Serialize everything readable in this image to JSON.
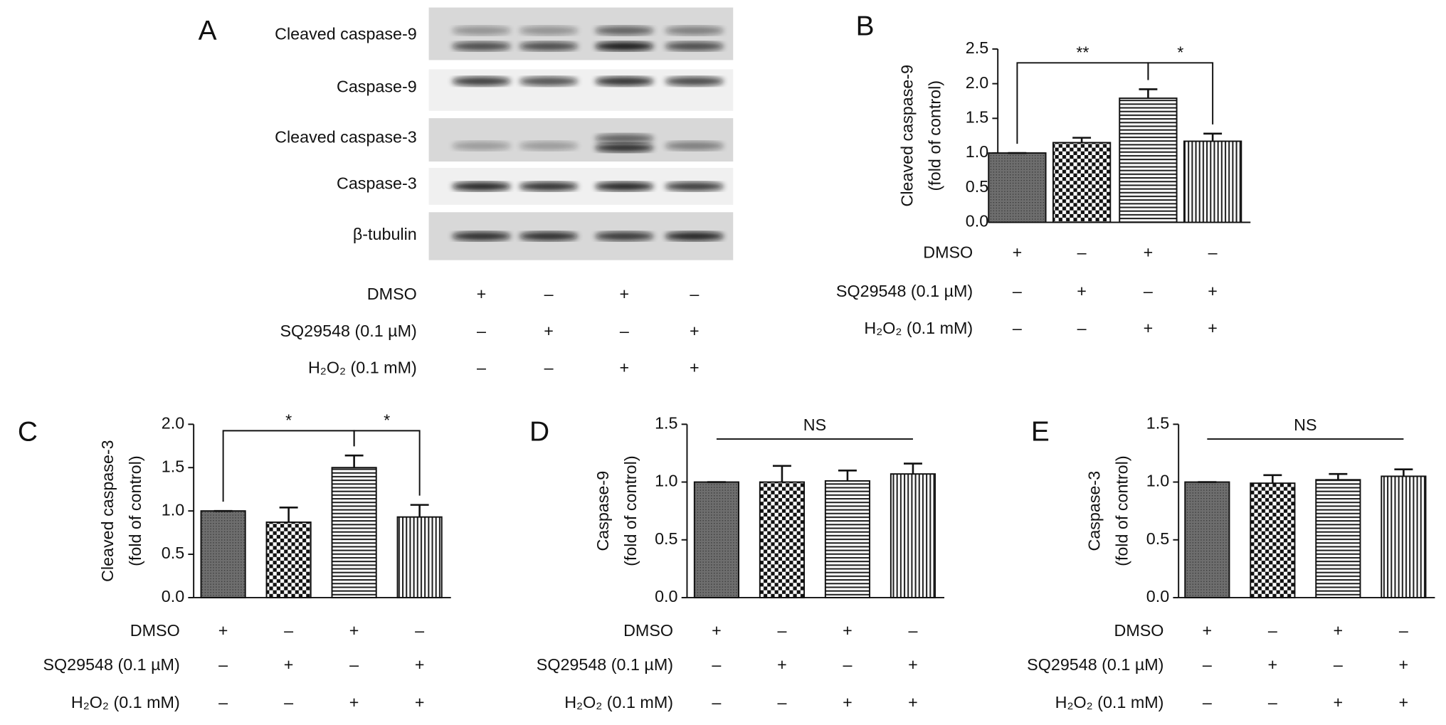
{
  "blot": {
    "panel_label": "A",
    "rows": [
      "Cleaved caspase-9",
      "Caspase-9",
      "Cleaved caspase-3",
      "Caspase-3",
      "β-tubulin"
    ],
    "treatments": [
      {
        "name": "DMSO",
        "signs": [
          "+",
          "–",
          "+",
          "–"
        ]
      },
      {
        "name": "SQ29548 (0.1 µM)",
        "signs": [
          "–",
          "+",
          "–",
          "+"
        ]
      },
      {
        "name": "H₂O₂ (0.1 mM)",
        "signs": [
          "–",
          "–",
          "+",
          "+"
        ]
      }
    ]
  },
  "chart_data": [
    {
      "type": "bar",
      "panel_label": "B",
      "ylabel": [
        "Cleaved caspase-9",
        "(fold of control)"
      ],
      "values": [
        1.0,
        1.15,
        1.79,
        1.17
      ],
      "errors": [
        0,
        0.07,
        0.13,
        0.11
      ],
      "ylim": [
        0,
        2.5
      ],
      "yticks": [
        {
          "value": 0,
          "label": "0.0"
        },
        0.5,
        {
          "value": 1,
          "label": "1.0"
        },
        1.5,
        {
          "value": 2,
          "label": "2.0"
        },
        2.5
      ],
      "annotations": [
        "**",
        "*"
      ],
      "treatments": [
        {
          "name": "DMSO",
          "signs": [
            "+",
            "–",
            "+",
            "–"
          ]
        },
        {
          "name": "SQ29548 (0.1 µM)",
          "signs": [
            "–",
            "+",
            "–",
            "+"
          ]
        },
        {
          "name": "H₂O₂ (0.1 mM)",
          "signs": [
            "–",
            "–",
            "+",
            "+"
          ]
        }
      ]
    },
    {
      "type": "bar",
      "panel_label": "C",
      "ylabel": [
        "Cleaved caspase-3",
        "(fold of control)"
      ],
      "values": [
        1.0,
        0.87,
        1.5,
        0.93
      ],
      "errors": [
        0,
        0.17,
        0.14,
        0.14
      ],
      "ylim": [
        0,
        2
      ],
      "yticks": [
        {
          "value": 0,
          "label": "0.0"
        },
        0.5,
        {
          "value": 1,
          "label": "1.0"
        },
        1.5,
        {
          "value": 2,
          "label": "2.0"
        }
      ],
      "annotations": [
        "*",
        "*"
      ],
      "treatments": [
        {
          "name": "DMSO",
          "signs": [
            "+",
            "–",
            "+",
            "–"
          ]
        },
        {
          "name": "SQ29548 (0.1 µM)",
          "signs": [
            "–",
            "+",
            "–",
            "+"
          ]
        },
        {
          "name": "H₂O₂ (0.1 mM)",
          "signs": [
            "–",
            "–",
            "+",
            "+"
          ]
        }
      ]
    },
    {
      "type": "bar",
      "panel_label": "D",
      "ylabel": [
        "Caspase-9",
        "(fold of control)"
      ],
      "values": [
        1.0,
        1.0,
        1.01,
        1.07
      ],
      "errors": [
        0,
        0.14,
        0.09,
        0.09
      ],
      "ylim": [
        0,
        1.5
      ],
      "yticks": [
        {
          "value": 0,
          "label": "0.0"
        },
        0.5,
        {
          "value": 1,
          "label": "1.0"
        },
        1.5
      ],
      "annotations": [
        "NS"
      ],
      "treatments": [
        {
          "name": "DMSO",
          "signs": [
            "+",
            "–",
            "+",
            "–"
          ]
        },
        {
          "name": "SQ29548 (0.1 µM)",
          "signs": [
            "–",
            "+",
            "–",
            "+"
          ]
        },
        {
          "name": "H₂O₂ (0.1 mM)",
          "signs": [
            "–",
            "–",
            "+",
            "+"
          ]
        }
      ]
    },
    {
      "type": "bar",
      "panel_label": "E",
      "ylabel": [
        "Caspase-3",
        "(fold of control)"
      ],
      "values": [
        1.0,
        0.99,
        1.02,
        1.05
      ],
      "errors": [
        0,
        0.07,
        0.05,
        0.06
      ],
      "ylim": [
        0,
        1.5
      ],
      "yticks": [
        {
          "value": 0,
          "label": "0.0"
        },
        0.5,
        {
          "value": 1,
          "label": "1.0"
        },
        1.5
      ],
      "annotations": [
        "NS"
      ],
      "treatments": [
        {
          "name": "DMSO",
          "signs": [
            "+",
            "–",
            "+",
            "–"
          ]
        },
        {
          "name": "SQ29548 (0.1 µM)",
          "signs": [
            "–",
            "+",
            "–",
            "+"
          ]
        },
        {
          "name": "H₂O₂ (0.1 mM)",
          "signs": [
            "–",
            "–",
            "+",
            "+"
          ]
        }
      ]
    }
  ]
}
